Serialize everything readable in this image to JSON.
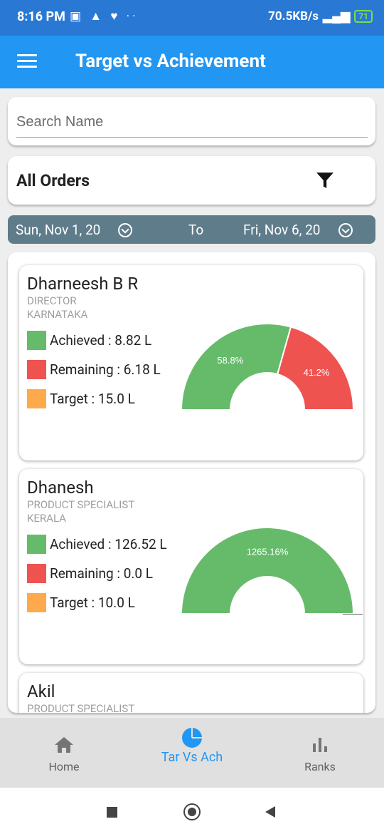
{
  "status_bar": {
    "time": "8:16 PM",
    "network_speed": "70.5KB/s",
    "battery": "71"
  },
  "app_bar": {
    "title": "Target vs Achievement",
    "menu_icon": "hamburger-menu-icon"
  },
  "search": {
    "placeholder": "Search Name",
    "value": ""
  },
  "orders_filter": {
    "label": "All Orders",
    "icon": "filter-icon"
  },
  "date_range": {
    "from": "Sun, Nov 1, 20",
    "to_label": "To",
    "to": "Fri, Nov 6, 20"
  },
  "colors": {
    "achieved": "#66bb6a",
    "remaining": "#ef5350",
    "target": "#ffa94d",
    "accent": "#2196f3"
  },
  "people": [
    {
      "name": "Dharneesh B R",
      "role": "DIRECTOR",
      "state": "KARNATAKA",
      "achieved_label": "Achieved : 8.82 L",
      "remaining_label": "Remaining : 6.18 L",
      "target_label": "Target : 15.0 L",
      "achieved_pct": 58.8,
      "remaining_pct": 41.2,
      "achieved_text": "58.8%",
      "remaining_text": "41.2%"
    },
    {
      "name": "Dhanesh",
      "role": "PRODUCT SPECIALIST",
      "state": "KERALA",
      "achieved_label": "Achieved : 126.52 L",
      "remaining_label": "Remaining : 0.0 L",
      "target_label": "Target : 10.0 L",
      "achieved_pct": 100,
      "remaining_pct": 0,
      "achieved_text": "1265.16%",
      "remaining_text": ""
    },
    {
      "name": "Akil",
      "role": "PRODUCT SPECIALIST"
    }
  ],
  "bottom_nav": {
    "items": [
      {
        "label": "Home",
        "icon": "home-icon"
      },
      {
        "label": "Tar Vs Ach",
        "icon": "pie-chart-icon"
      },
      {
        "label": "Ranks",
        "icon": "bar-chart-icon"
      }
    ]
  }
}
